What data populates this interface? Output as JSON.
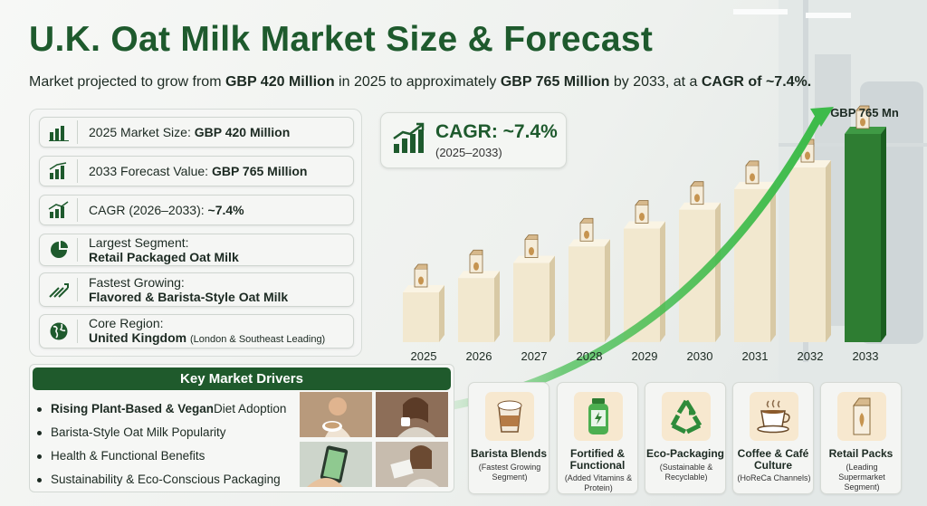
{
  "title": "U.K. Oat Milk Market Size & Forecast",
  "subtitle": {
    "p1": "Market projected to grow from ",
    "b1": "GBP 420 Million",
    "p2": " in 2025 to approximately ",
    "b2": "GBP 765 Million",
    "p3": " by 2033, at a ",
    "b3": "CAGR of ~7.4%."
  },
  "stats": [
    {
      "icon": "bar-chart-icon",
      "label": "2025 Market Size: ",
      "value": "GBP 420 Million"
    },
    {
      "icon": "growth-chart-icon",
      "label": "2033 Forecast Value: ",
      "value": "GBP 765 Million"
    },
    {
      "icon": "trend-up-icon",
      "label": "CAGR (2026–2033): ",
      "value": "~7.4%"
    },
    {
      "icon": "pie-chart-icon",
      "label": "Largest Segment:",
      "value": "Retail Packaged Oat Milk"
    },
    {
      "icon": "growth-arrows-icon",
      "label": "Fastest Growing:",
      "value": "Flavored & Barista-Style Oat Milk"
    },
    {
      "icon": "globe-icon",
      "label": "Core Region:",
      "value": "United Kingdom",
      "note": "(London & Southeast Leading)"
    }
  ],
  "cagr_box": {
    "main": "CAGR: ~7.4%",
    "sub": "(2025–2033)"
  },
  "chart_data": {
    "type": "bar",
    "categories": [
      "2025",
      "2026",
      "2027",
      "2028",
      "2029",
      "2030",
      "2031",
      "2032",
      "2033"
    ],
    "values": [
      420,
      451,
      484,
      520,
      559,
      600,
      645,
      692,
      765
    ],
    "unit": "GBP Mn",
    "data_labels": [
      {
        "category": "2033",
        "text": "GBP 765 Mn"
      }
    ],
    "highlight_category": "2033",
    "colors": {
      "bar": "#f2e8cf",
      "bar_side": "#d8c9a5",
      "highlight": "#2e7d32",
      "highlight_side": "#1b5e20",
      "arrow": "#3dbb4a"
    },
    "title": "",
    "xlabel": "",
    "ylabel": "",
    "grid": false
  },
  "drivers": {
    "heading": "Key Market Drivers",
    "items": [
      {
        "bold": "Rising Plant-Based & Vegan",
        "rest": " Diet Adoption"
      },
      {
        "bold": "",
        "rest": "Barista-Style Oat Milk Popularity"
      },
      {
        "bold": "",
        "rest": "Health & Functional Benefits"
      },
      {
        "bold": "",
        "rest": "Sustainability & Eco-Conscious Packaging"
      }
    ]
  },
  "segments": [
    {
      "icon": "latte-cup-icon",
      "title": "Barista Blends",
      "desc": "(Fastest Growing Segment)"
    },
    {
      "icon": "fortified-bottle-icon",
      "title": "Fortified & Functional",
      "desc": "(Added Vitamins & Protein)"
    },
    {
      "icon": "recycle-icon",
      "title": "Eco-Packaging",
      "desc": "(Sustainable & Recyclable)"
    },
    {
      "icon": "coffee-cup-icon",
      "title": "Coffee & Café Culture",
      "desc": "(HoReCa Channels)"
    },
    {
      "icon": "milk-carton-icon",
      "title": "Retail Packs",
      "desc": "(Leading Supermarket Segment)"
    }
  ]
}
